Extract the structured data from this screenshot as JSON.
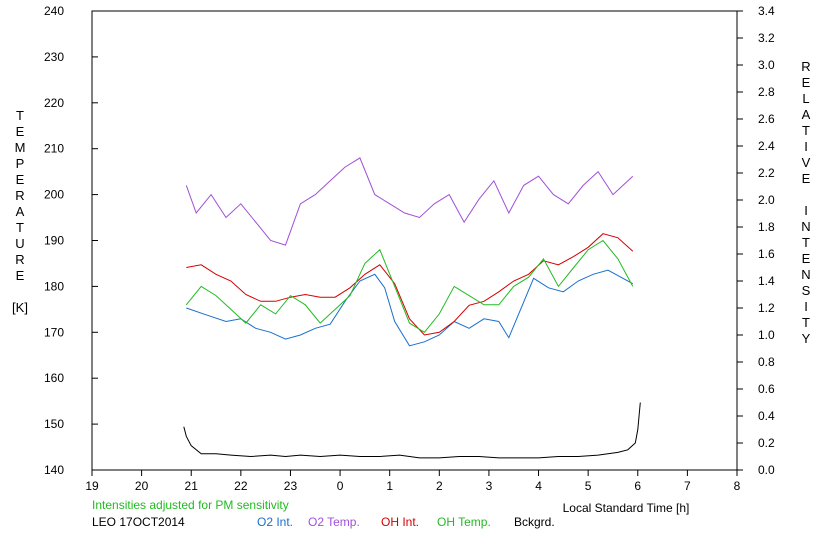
{
  "chart_data": {
    "type": "line",
    "left_axis": {
      "label_letters": [
        "T",
        "E",
        "M",
        "P",
        "E",
        "R",
        "A",
        "T",
        "U",
        "R",
        "E",
        "",
        "[K]"
      ],
      "ylim": [
        140,
        240
      ],
      "ticks": [
        140,
        150,
        160,
        170,
        180,
        190,
        200,
        210,
        220,
        230,
        240
      ]
    },
    "right_axis": {
      "label_letters": [
        "R",
        "E",
        "L",
        "A",
        "T",
        "I",
        "V",
        "E",
        "",
        "I",
        "N",
        "T",
        "E",
        "N",
        "S",
        "I",
        "T",
        "Y"
      ],
      "ylim": [
        0.0,
        3.4
      ],
      "ticks": [
        "0.0",
        "0.2",
        "0.4",
        "0.6",
        "0.8",
        "1.0",
        "1.2",
        "1.4",
        "1.6",
        "1.8",
        "2.0",
        "2.2",
        "2.4",
        "2.6",
        "2.8",
        "3.0",
        "3.2",
        "3.4"
      ]
    },
    "x_axis": {
      "label": "Local Standard Time [h]",
      "ticks": [
        "19",
        "20",
        "21",
        "22",
        "23",
        "0",
        "1",
        "2",
        "3",
        "4",
        "5",
        "6",
        "7",
        "8"
      ]
    },
    "note": "Intensities adjusted for PM sensitivity",
    "station": "LEO 17OCT2014",
    "series": [
      {
        "name": "O2 Int.",
        "axis": "right",
        "color": "#1a6fd0",
        "x": [
          20.9,
          21.3,
          21.7,
          22.0,
          22.3,
          22.6,
          22.9,
          23.2,
          23.5,
          23.8,
          24.1,
          24.4,
          24.7,
          24.9,
          25.1,
          25.4,
          25.7,
          26.0,
          26.3,
          26.6,
          26.9,
          27.2,
          27.4,
          27.9,
          28.2,
          28.5,
          28.8,
          29.1,
          29.4,
          29.9
        ],
        "y": [
          1.2,
          1.15,
          1.1,
          1.12,
          1.05,
          1.02,
          0.97,
          1.0,
          1.05,
          1.08,
          1.25,
          1.4,
          1.45,
          1.35,
          1.1,
          0.92,
          0.95,
          1.0,
          1.1,
          1.05,
          1.12,
          1.1,
          0.98,
          1.42,
          1.35,
          1.32,
          1.4,
          1.45,
          1.48,
          1.38
        ]
      },
      {
        "name": "O2 Temp.",
        "axis": "left",
        "color": "#a050d8",
        "x": [
          20.9,
          21.1,
          21.4,
          21.7,
          22.0,
          22.3,
          22.6,
          22.9,
          23.2,
          23.5,
          23.8,
          24.1,
          24.4,
          24.7,
          25.0,
          25.3,
          25.6,
          25.9,
          26.2,
          26.5,
          26.8,
          27.1,
          27.4,
          27.7,
          28.0,
          28.3,
          28.6,
          28.9,
          29.2,
          29.5,
          29.9
        ],
        "y": [
          202,
          196,
          200,
          195,
          198,
          194,
          190,
          189,
          198,
          200,
          203,
          206,
          208,
          200,
          198,
          196,
          195,
          198,
          200,
          194,
          199,
          203,
          196,
          202,
          204,
          200,
          198,
          202,
          205,
          200,
          204
        ]
      },
      {
        "name": "OH Int.",
        "axis": "right",
        "color": "#d40000",
        "x": [
          20.9,
          21.2,
          21.5,
          21.8,
          22.1,
          22.4,
          22.7,
          23.0,
          23.3,
          23.6,
          23.9,
          24.2,
          24.5,
          24.8,
          25.1,
          25.4,
          25.7,
          26.0,
          26.3,
          26.6,
          26.9,
          27.2,
          27.5,
          27.8,
          28.1,
          28.4,
          28.7,
          29.0,
          29.3,
          29.6,
          29.9
        ],
        "y": [
          1.5,
          1.52,
          1.45,
          1.4,
          1.3,
          1.25,
          1.25,
          1.28,
          1.3,
          1.28,
          1.28,
          1.35,
          1.45,
          1.52,
          1.38,
          1.12,
          1.0,
          1.02,
          1.1,
          1.22,
          1.25,
          1.32,
          1.4,
          1.45,
          1.55,
          1.52,
          1.58,
          1.65,
          1.75,
          1.72,
          1.62
        ]
      },
      {
        "name": "OH Temp.",
        "axis": "left",
        "color": "#22bb22",
        "x": [
          20.9,
          21.2,
          21.5,
          21.8,
          22.1,
          22.4,
          22.7,
          23.0,
          23.3,
          23.6,
          23.9,
          24.2,
          24.5,
          24.8,
          25.1,
          25.4,
          25.7,
          26.0,
          26.3,
          26.6,
          26.9,
          27.2,
          27.5,
          27.8,
          28.1,
          28.4,
          28.7,
          29.0,
          29.3,
          29.6,
          29.9
        ],
        "y": [
          176,
          180,
          178,
          175,
          172,
          176,
          174,
          178,
          176,
          172,
          175,
          178,
          185,
          188,
          180,
          172,
          170,
          174,
          180,
          178,
          176,
          176,
          180,
          182,
          186,
          180,
          184,
          188,
          190,
          186,
          180
        ]
      },
      {
        "name": "Bckgrd.",
        "axis": "right",
        "color": "#000000",
        "x": [
          20.85,
          20.9,
          21.0,
          21.2,
          21.5,
          21.8,
          22.2,
          22.6,
          22.9,
          23.2,
          23.6,
          24.0,
          24.4,
          24.8,
          25.2,
          25.6,
          26.0,
          26.4,
          26.8,
          27.2,
          27.6,
          28.0,
          28.4,
          28.8,
          29.2,
          29.6,
          29.8,
          29.95,
          30.0,
          30.05
        ],
        "y": [
          0.32,
          0.25,
          0.18,
          0.12,
          0.12,
          0.11,
          0.1,
          0.11,
          0.1,
          0.11,
          0.1,
          0.11,
          0.1,
          0.1,
          0.11,
          0.09,
          0.09,
          0.1,
          0.1,
          0.09,
          0.09,
          0.09,
          0.1,
          0.1,
          0.11,
          0.13,
          0.15,
          0.2,
          0.3,
          0.5
        ]
      }
    ]
  }
}
